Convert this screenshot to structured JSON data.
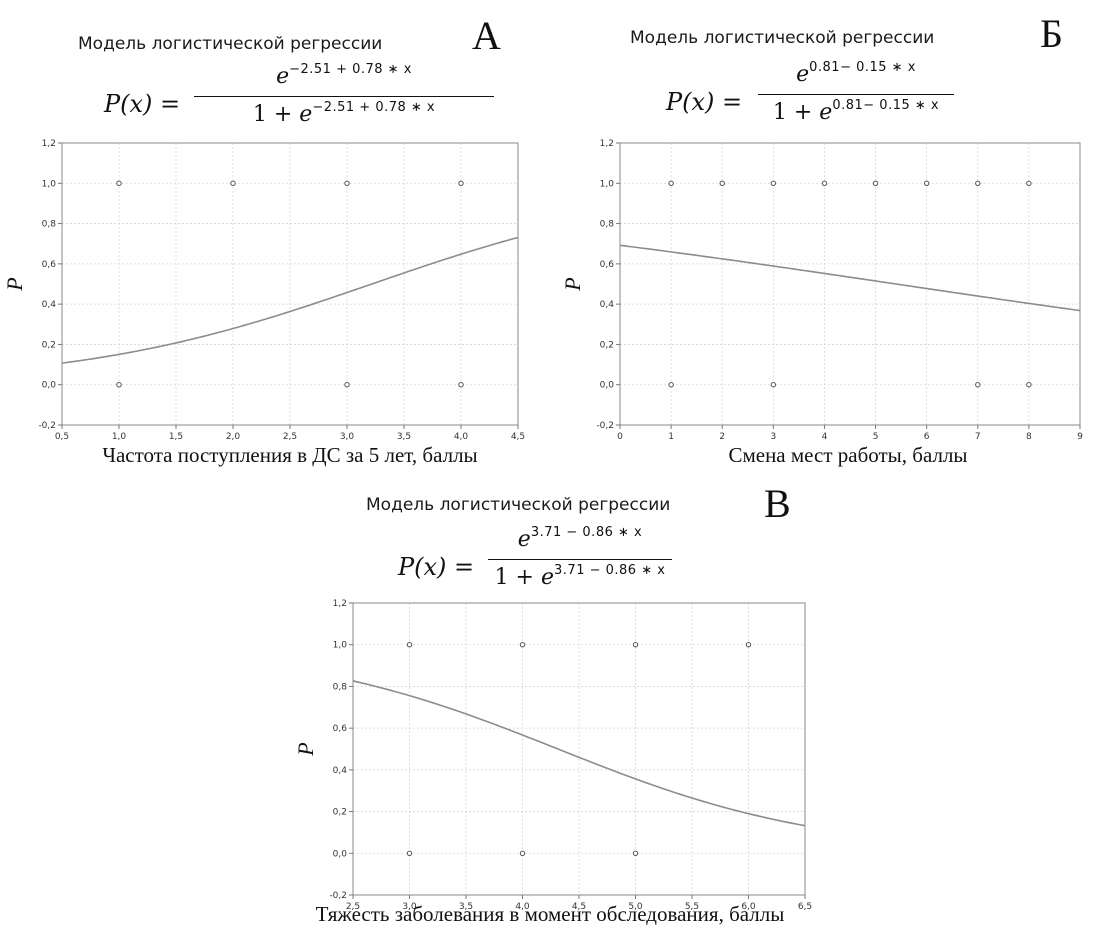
{
  "panels": [
    {
      "letter": "А",
      "title": "Модель логистической регрессии",
      "formula": {
        "lhs": "P(x) =",
        "base": "e",
        "num_exp": "−2.51 + 0.78 ∗ x",
        "den_prefix": "1 + ",
        "den_exp": "−2.51 + 0.78 ∗ x"
      },
      "xlabel": "Частота поступления в ДС за 5 лет, баллы"
    },
    {
      "letter": "Б",
      "title": "Модель логистической регрессии",
      "formula": {
        "lhs": "P(x) =",
        "base": "e",
        "num_exp": "0.81− 0.15 ∗ x",
        "den_prefix": "1 + ",
        "den_exp": "0.81− 0.15 ∗ x"
      },
      "xlabel": "Смена мест работы, баллы"
    },
    {
      "letter": "В",
      "title": "Модель логистической регрессии",
      "formula": {
        "lhs": "P(x) =",
        "base": "e",
        "num_exp": "3.71 − 0.86 ∗ x",
        "den_prefix": "1 + ",
        "den_exp": "3.71 − 0.86 ∗ x"
      },
      "xlabel": "Тяжесть заболевания в момент обследования, баллы"
    }
  ],
  "chart_data": [
    {
      "type": "scatter",
      "title": "Модель логистической регрессии",
      "xlabel": "Частота поступления в ДС за 5 лет, баллы",
      "ylabel": "P",
      "xlim": [
        0.5,
        4.5
      ],
      "ylim": [
        -0.2,
        1.2
      ],
      "xticks": [
        0.5,
        1.0,
        1.5,
        2.0,
        2.5,
        3.0,
        3.5,
        4.0,
        4.5
      ],
      "yticks": [
        -0.2,
        0.0,
        0.2,
        0.4,
        0.6,
        0.8,
        1.0,
        1.2
      ],
      "xtick_labels": [
        "0,5",
        "1,0",
        "1,5",
        "2,0",
        "2,5",
        "3,0",
        "3,5",
        "4,0",
        "4,5"
      ],
      "ytick_labels": [
        "-0,2",
        "0,0",
        "0,2",
        "0,4",
        "0,6",
        "0,8",
        "1,0",
        "1,2"
      ],
      "grid": true,
      "points": [
        [
          1,
          1
        ],
        [
          2,
          1
        ],
        [
          3,
          1
        ],
        [
          4,
          1
        ],
        [
          1,
          0
        ],
        [
          3,
          0
        ],
        [
          4,
          0
        ]
      ],
      "curve": {
        "intercept": -2.51,
        "slope": 0.78
      },
      "colors": {
        "curve": "#8c8c8c",
        "points": "#555555",
        "grid": "#d6d6d6"
      }
    },
    {
      "type": "scatter",
      "title": "Модель логистической регрессии",
      "xlabel": "Смена мест работы, баллы",
      "ylabel": "P",
      "xlim": [
        0,
        9
      ],
      "ylim": [
        -0.2,
        1.2
      ],
      "xticks": [
        0,
        1,
        2,
        3,
        4,
        5,
        6,
        7,
        8,
        9
      ],
      "yticks": [
        -0.2,
        0.0,
        0.2,
        0.4,
        0.6,
        0.8,
        1.0,
        1.2
      ],
      "xtick_labels": [
        "0",
        "1",
        "2",
        "3",
        "4",
        "5",
        "6",
        "7",
        "8",
        "9"
      ],
      "ytick_labels": [
        "-0,2",
        "0,0",
        "0,2",
        "0,4",
        "0,6",
        "0,8",
        "1,0",
        "1,2"
      ],
      "grid": true,
      "points": [
        [
          1,
          1
        ],
        [
          2,
          1
        ],
        [
          3,
          1
        ],
        [
          4,
          1
        ],
        [
          5,
          1
        ],
        [
          6,
          1
        ],
        [
          7,
          1
        ],
        [
          8,
          1
        ],
        [
          1,
          0
        ],
        [
          3,
          0
        ],
        [
          7,
          0
        ],
        [
          8,
          0
        ]
      ],
      "curve": {
        "intercept": 0.81,
        "slope": -0.15
      },
      "colors": {
        "curve": "#8c8c8c",
        "points": "#555555",
        "grid": "#d6d6d6"
      }
    },
    {
      "type": "scatter",
      "title": "Модель логистической регрессии",
      "xlabel": "Тяжесть заболевания в момент обследования, баллы",
      "ylabel": "P",
      "xlim": [
        2.5,
        6.5
      ],
      "ylim": [
        -0.2,
        1.2
      ],
      "xticks": [
        2.5,
        3.0,
        3.5,
        4.0,
        4.5,
        5.0,
        5.5,
        6.0,
        6.5
      ],
      "yticks": [
        -0.2,
        0.0,
        0.2,
        0.4,
        0.6,
        0.8,
        1.0,
        1.2
      ],
      "xtick_labels": [
        "2,5",
        "3,0",
        "3,5",
        "4,0",
        "4,5",
        "5,0",
        "5,5",
        "6,0",
        "6,5"
      ],
      "ytick_labels": [
        "-0,2",
        "0,0",
        "0,2",
        "0,4",
        "0,6",
        "0,8",
        "1,0",
        "1,2"
      ],
      "grid": true,
      "points": [
        [
          3,
          1
        ],
        [
          4,
          1
        ],
        [
          5,
          1
        ],
        [
          6,
          1
        ],
        [
          3,
          0
        ],
        [
          4,
          0
        ],
        [
          5,
          0
        ]
      ],
      "curve": {
        "intercept": 3.71,
        "slope": -0.86
      },
      "colors": {
        "curve": "#8c8c8c",
        "points": "#555555",
        "grid": "#d6d6d6"
      }
    }
  ]
}
